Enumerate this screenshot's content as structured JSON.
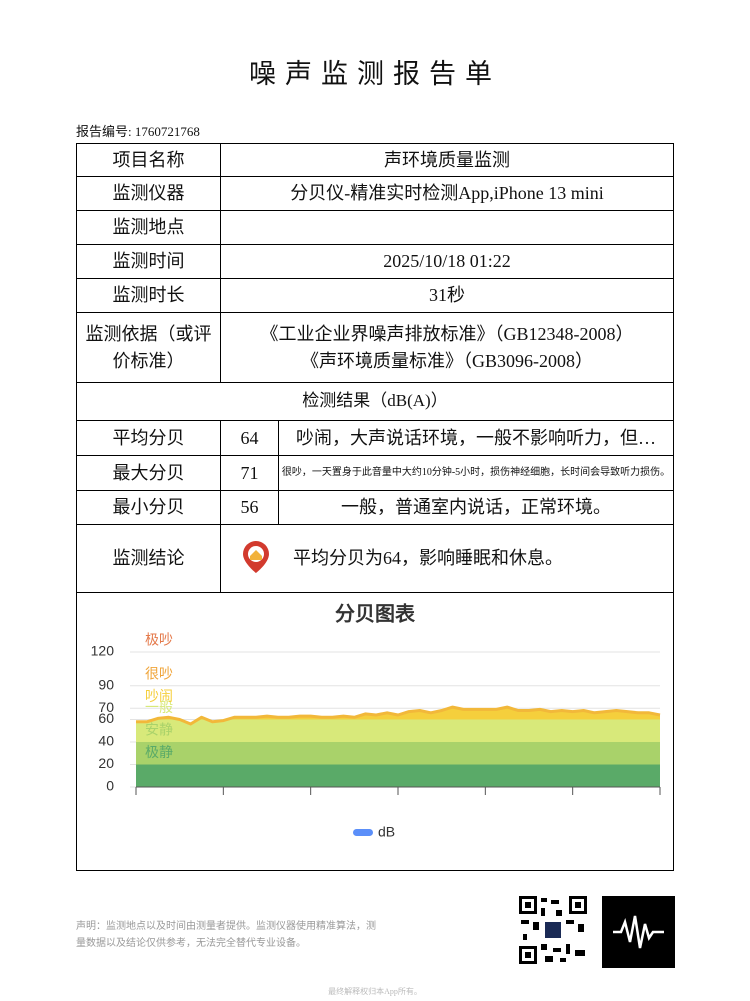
{
  "header": {
    "title": "噪声监测报告单",
    "report_no": "报告编号: 1760721768"
  },
  "table": {
    "rows": [
      {
        "label": "项目名称",
        "value": "声环境质量监测"
      },
      {
        "label": "监测仪器",
        "value": "分贝仪-精准实时检测App,iPhone 13 mini"
      },
      {
        "label": "监测地点"
      },
      {
        "label": "监测时间",
        "value": "2025/10/18 01:22"
      },
      {
        "label": "监测时长",
        "value": "31秒"
      },
      {
        "label": "监测依据（或评价标准）",
        "value": [
          "《工业企业界噪声排放标准》（GB12348-2008）",
          "《声环境质量标准》（GB3096-2008）"
        ]
      }
    ],
    "results_title": "检测结果（dB(A)）",
    "results": [
      {
        "label": "平均分贝",
        "value": 64,
        "desc": "吵闹，大声说话环境，一般不影响听力，但…"
      },
      {
        "label": "最大分贝",
        "value": 71,
        "desc": "很吵，一天置身于此音量中大约10分钟-5小时，损伤神经细胞，长时间会导致听力损伤。"
      },
      {
        "label": "最小分贝",
        "value": 56,
        "desc": "一般，普通室内说话，正常环境。"
      }
    ],
    "conclusion": {
      "label": "监测结论",
      "value": "平均分贝为64，影响睡眠和休息。"
    }
  },
  "chart_data": {
    "type": "area",
    "title": "分贝图表",
    "ylim": [
      0,
      120
    ],
    "yticks": [
      0,
      20,
      40,
      60,
      70,
      90,
      120
    ],
    "grid": true,
    "bands": [
      {
        "name": "极静",
        "from": 0,
        "to": 20,
        "color": "#5aaa68"
      },
      {
        "name": "安静",
        "from": 20,
        "to": 40,
        "color": "#a9d26a"
      },
      {
        "name": "一般",
        "from": 40,
        "to": 60,
        "color": "#d8e97a"
      },
      {
        "name": "吵闹",
        "from": 60,
        "to": 70,
        "color": "#f5cf3c"
      },
      {
        "name": "很吵",
        "from": 70,
        "to": 90,
        "color": "#f0a53a"
      },
      {
        "name": "极吵",
        "from": 90,
        "to": 120,
        "color": "#e4794a"
      }
    ],
    "series": [
      {
        "name": "dB",
        "color": "#5b8ff9",
        "line_color": "#f2b83a",
        "values": [
          58,
          58,
          61,
          62,
          60,
          56,
          62,
          58,
          59,
          62,
          62,
          62,
          63,
          62,
          62,
          63,
          63,
          62,
          62,
          63,
          62,
          65,
          64,
          66,
          64,
          67,
          68,
          66,
          68,
          71,
          69,
          69,
          69,
          69,
          71,
          68,
          68,
          69,
          67,
          68,
          67,
          68,
          66,
          67,
          68,
          67,
          66,
          66,
          64
        ]
      }
    ]
  },
  "footer": {
    "disclaimer": "声明：监测地点以及时间由测量者提供。监测仪器使用精准算法，测量数据以及结论仅供参考，无法完全替代专业设备。",
    "copyright": "最终解释权归本App所有。"
  }
}
